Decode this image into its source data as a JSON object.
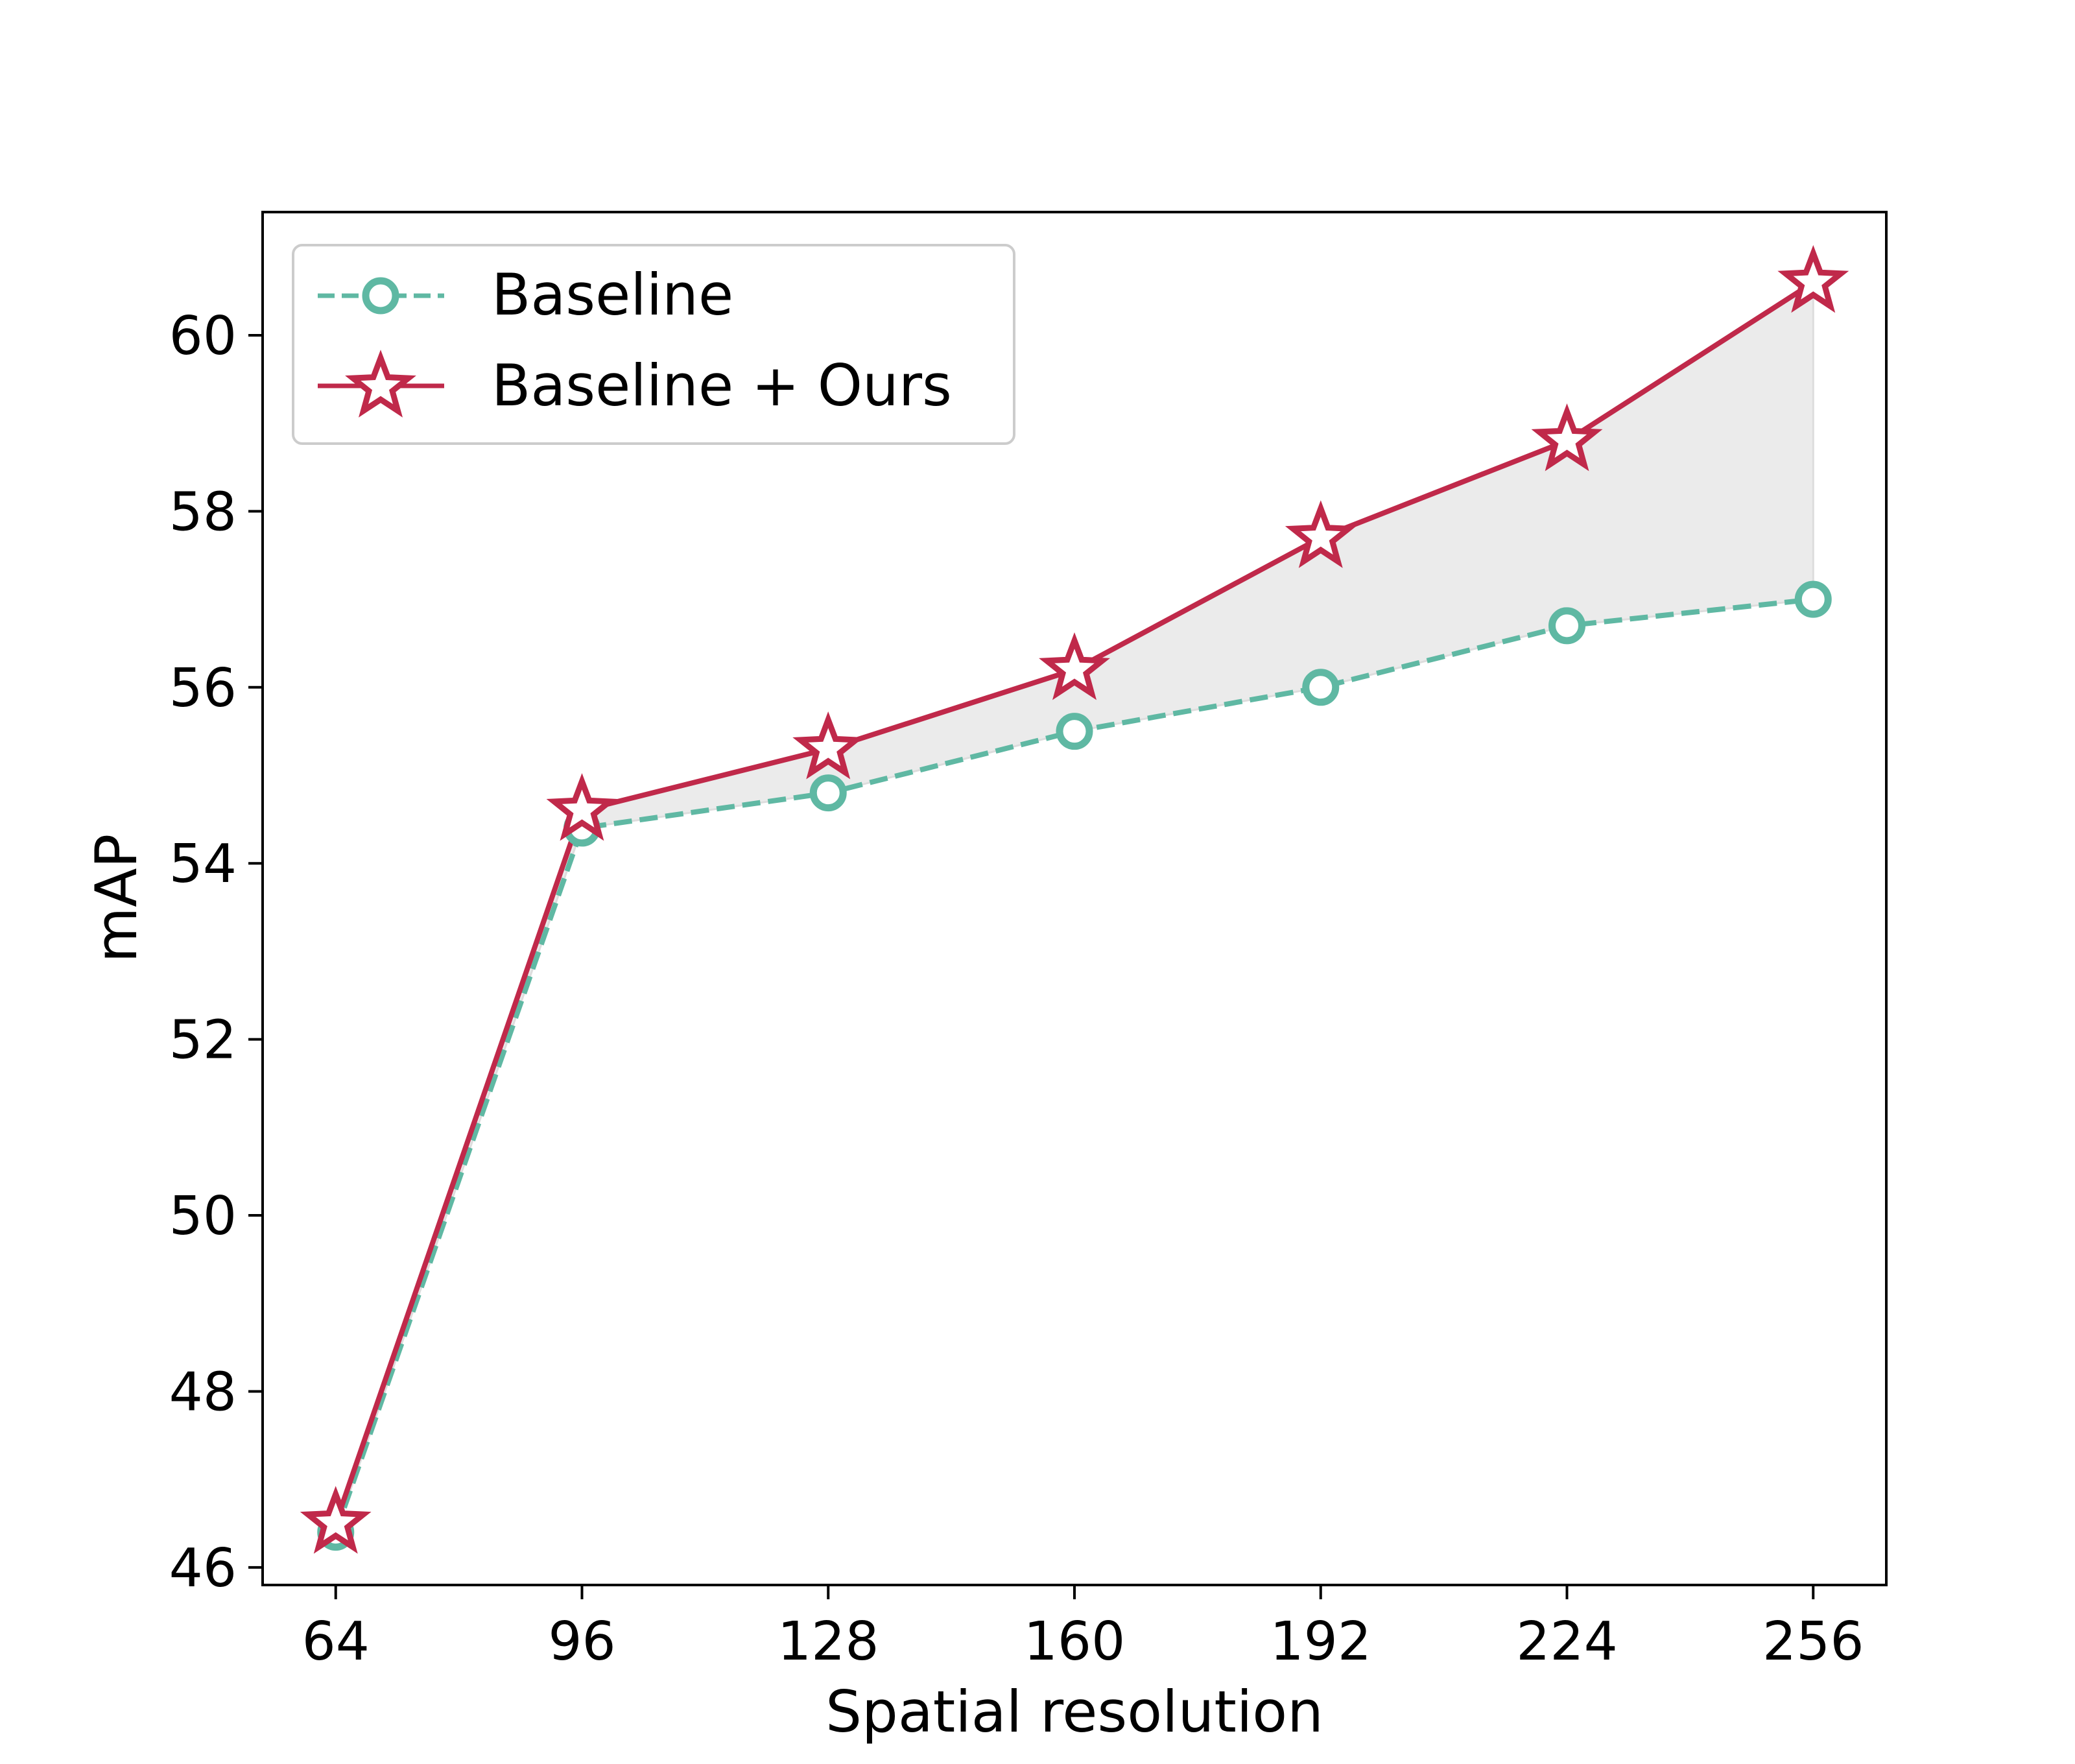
{
  "chart_data": {
    "type": "line",
    "title": "",
    "xlabel": "Spatial resolution",
    "ylabel": "mAP",
    "x": [
      64,
      96,
      128,
      160,
      192,
      224,
      256
    ],
    "xticks": [
      "64",
      "96",
      "128",
      "160",
      "192",
      "224",
      "256"
    ],
    "yticks": [
      "46",
      "48",
      "50",
      "52",
      "54",
      "56",
      "58",
      "60"
    ],
    "xlim": [
      54.5,
      265.5
    ],
    "ylim": [
      45.8,
      61.4
    ],
    "grid": false,
    "legend_position": "upper left",
    "fill_between_series": true,
    "series": [
      {
        "name": "Baseline",
        "values": [
          46.4,
          54.4,
          54.8,
          55.5,
          56.0,
          56.7,
          57.0
        ],
        "color": "#5fb8a3",
        "line_style": "dashed",
        "marker": "circle-open"
      },
      {
        "name": "Baseline + Ours",
        "values": [
          46.5,
          54.6,
          55.3,
          56.2,
          57.7,
          58.8,
          60.6
        ],
        "color": "#c0294a",
        "line_style": "solid",
        "marker": "star-open"
      }
    ],
    "fill_color": "#ebebeb"
  }
}
